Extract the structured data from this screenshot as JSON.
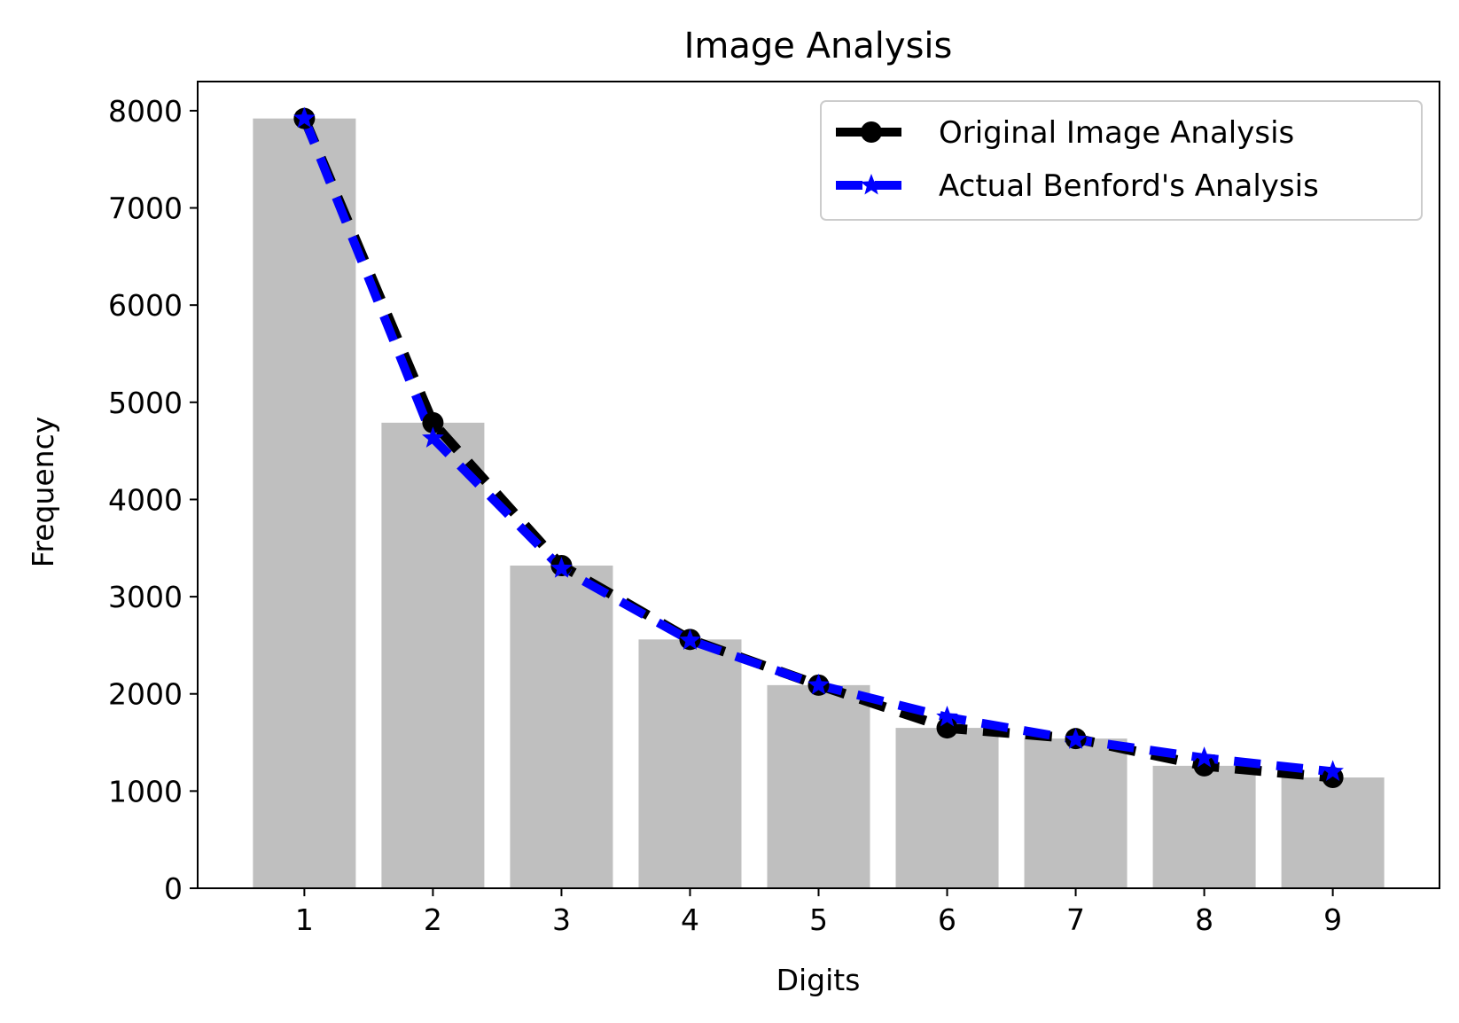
{
  "chart_data": {
    "type": "bar",
    "title": "Image Analysis",
    "xlabel": "Digits",
    "ylabel": "Frequency",
    "categories": [
      "1",
      "2",
      "3",
      "4",
      "5",
      "6",
      "7",
      "8",
      "9"
    ],
    "x": [
      1,
      2,
      3,
      4,
      5,
      6,
      7,
      8,
      9
    ],
    "bars": {
      "values": [
        7920,
        4790,
        3320,
        2560,
        2090,
        1650,
        1540,
        1260,
        1140
      ],
      "color": "#bfbfbf"
    },
    "series": [
      {
        "name": "Original Image Analysis",
        "type": "line",
        "values": [
          7920,
          4790,
          3320,
          2560,
          2090,
          1650,
          1540,
          1260,
          1140
        ],
        "color": "#000000",
        "marker": "circle",
        "line_style": "dashed"
      },
      {
        "name": "Actual Benford's Analysis",
        "type": "line",
        "values": [
          7920,
          4630,
          3290,
          2550,
          2090,
          1760,
          1530,
          1340,
          1200
        ],
        "color": "#0000ff",
        "marker": "star",
        "line_style": "dashed"
      }
    ],
    "yticks": [
      0,
      1000,
      2000,
      3000,
      4000,
      5000,
      6000,
      7000,
      8000
    ],
    "xticks": [
      1,
      2,
      3,
      4,
      5,
      6,
      7,
      8,
      9
    ],
    "ylim": [
      0,
      8300
    ],
    "xlim": [
      0.17,
      9.83
    ],
    "grid": false,
    "legend_position": "upper right"
  }
}
